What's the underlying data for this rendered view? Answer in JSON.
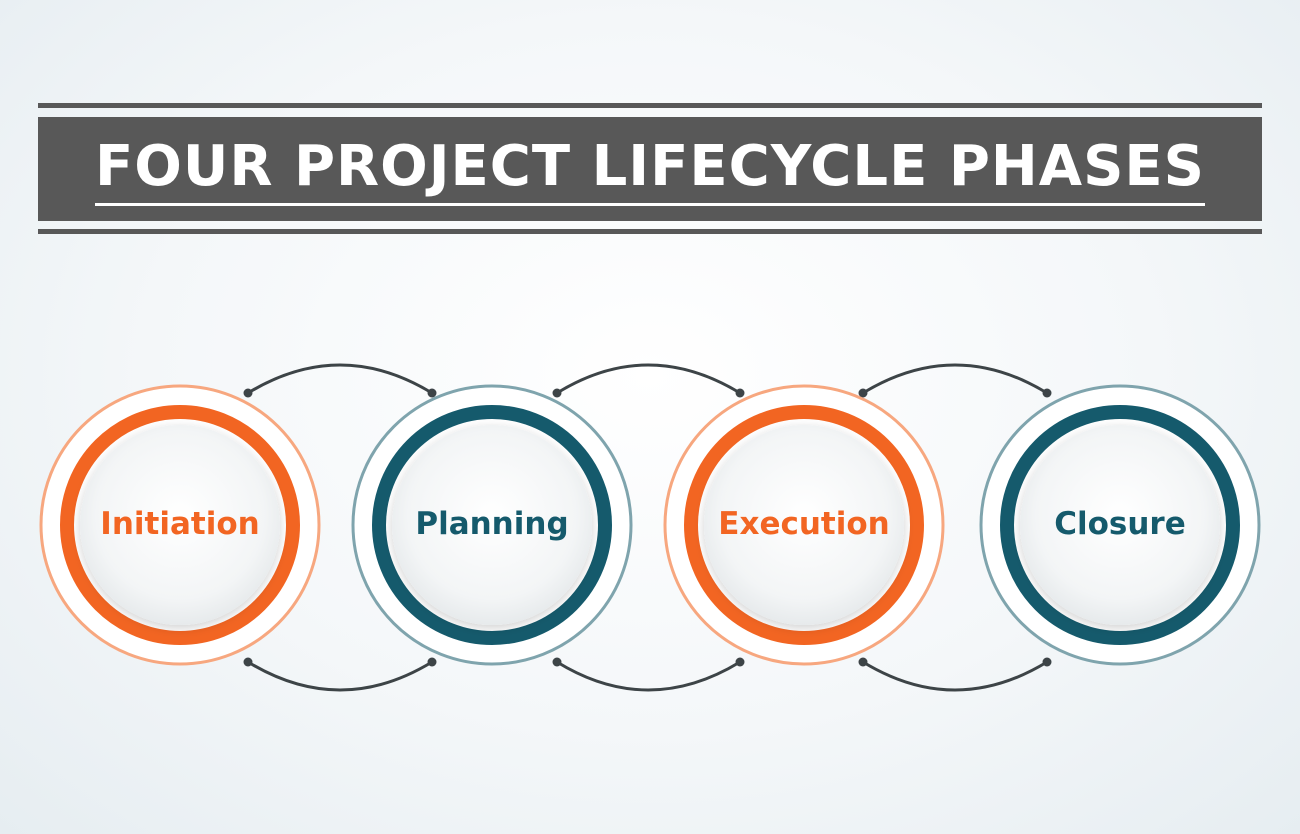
{
  "title": "FOUR PROJECT LIFECYCLE PHASES",
  "colors": {
    "orange": "#f26522",
    "orange_light": "#f7a77f",
    "teal": "#155a6c",
    "teal_light": "#7fa4ad",
    "banner": "#585858",
    "connector": "#3d4447"
  },
  "phases": [
    {
      "label": "Initiation",
      "color": "orange"
    },
    {
      "label": "Planning",
      "color": "teal"
    },
    {
      "label": "Execution",
      "color": "orange"
    },
    {
      "label": "Closure",
      "color": "teal"
    }
  ]
}
